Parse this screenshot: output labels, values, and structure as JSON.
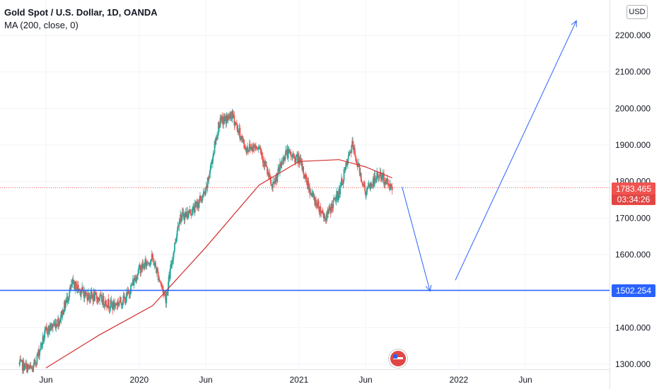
{
  "header": {
    "title": "Gold Spot / U.S. Dollar, 1D, OANDA",
    "indicator": "MA (200, close, 0)"
  },
  "currency_button": "USD",
  "current_price": {
    "value": "1783.465",
    "countdown": "03:34:26"
  },
  "target_level": {
    "value": "1502.254"
  },
  "colors": {
    "up": "#26a69a",
    "down": "#ef5350",
    "ma": "#d32f2f",
    "drawing": "#2962ff",
    "grid": "#f0f3fa",
    "axis_text": "#131722"
  },
  "icons": [
    "us-flag-icon"
  ],
  "chart_data": {
    "type": "line",
    "series": [
      {
        "kind": "price",
        "x": [
          "2019-04",
          "2019-05",
          "2019-06",
          "2019-07",
          "2019-08",
          "2019-09",
          "2019-10",
          "2019-11",
          "2019-12",
          "2020-01",
          "2020-02",
          "2020-03",
          "2020-04",
          "2020-05",
          "2020-06",
          "2020-07",
          "2020-08",
          "2020-09",
          "2020-10",
          "2020-11",
          "2020-12",
          "2021-01",
          "2021-02",
          "2021-03",
          "2021-04",
          "2021-05",
          "2021-06",
          "2021-07",
          "2021-08"
        ],
        "values": [
          1300,
          1285,
          1390,
          1420,
          1520,
          1490,
          1480,
          1460,
          1480,
          1560,
          1590,
          1480,
          1700,
          1720,
          1770,
          1960,
          1980,
          1890,
          1900,
          1780,
          1880,
          1860,
          1760,
          1700,
          1770,
          1900,
          1770,
          1820,
          1783
        ]
      },
      {
        "name": "MA (200, close, 0)",
        "x": [
          "2019-06",
          "2019-10",
          "2020-02",
          "2020-06",
          "2020-10",
          "2021-01",
          "2021-04",
          "2021-06",
          "2021-08"
        ],
        "values": [
          1290,
          1380,
          1460,
          1620,
          1790,
          1855,
          1860,
          1840,
          1810
        ]
      }
    ],
    "annotations": [
      {
        "type": "horizontal-line",
        "y": 1502.254
      },
      {
        "type": "arrow",
        "from": [
          "2021-08",
          1785
        ],
        "to": [
          "2021-11",
          1500
        ]
      },
      {
        "type": "arrow",
        "from": [
          "2021-12",
          1530
        ],
        "to": [
          "2022-11",
          2240
        ]
      }
    ],
    "x_tick_labels": [
      "Jun",
      "2020",
      "Jun",
      "2021",
      "Jun",
      "2022",
      "Jun"
    ],
    "x_tick_dates": [
      "2019-06",
      "2020-01",
      "2020-06",
      "2021-01",
      "2021-06",
      "2022-01",
      "2022-06"
    ],
    "y_ticks": [
      "1300.000",
      "1400.000",
      "1500.000",
      "1600.000",
      "1700.000",
      "1800.000",
      "1900.000",
      "2000.000",
      "2100.000",
      "2200.000"
    ],
    "ylim": [
      1290,
      2270
    ],
    "xlim": [
      "2019-04",
      "2022-12"
    ],
    "grid": true
  }
}
